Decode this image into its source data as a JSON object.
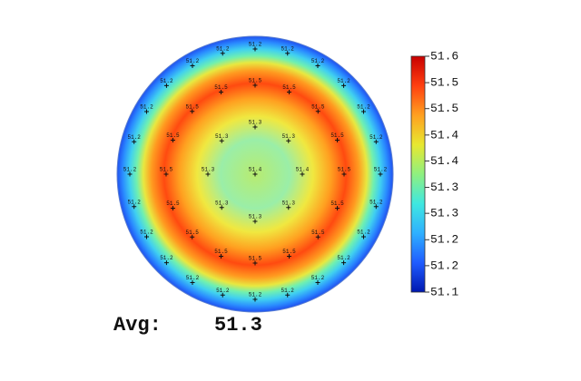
{
  "chart_data": {
    "type": "wafer-map",
    "rings": [
      [
        51.4
      ],
      [
        51.3,
        51.3,
        51.4,
        51.3,
        51.3,
        51.3,
        51.3,
        51.3
      ],
      [
        51.5,
        51.5,
        51.5,
        51.5,
        51.5,
        51.5,
        51.5,
        51.5,
        51.5,
        51.5,
        51.5,
        51.5,
        51.5,
        51.5,
        51.5,
        51.5
      ],
      [
        51.2,
        51.2,
        51.2,
        51.2,
        51.2,
        51.2,
        51.2,
        51.2,
        51.2,
        51.2,
        51.2,
        51.2,
        51.2,
        51.2,
        51.2,
        51.2,
        51.2,
        51.2,
        51.2,
        51.2,
        51.2,
        51.2,
        51.2,
        51.2
      ]
    ],
    "clim": [
      51.1,
      51.6
    ],
    "cticks": [
      51.6,
      {
        "value": 51.544,
        "label": "51.5"
      },
      {
        "value": 51.489,
        "label": "51.5"
      },
      {
        "value": 51.433,
        "label": "51.4"
      },
      {
        "value": 51.378,
        "label": "51.4"
      },
      {
        "value": 51.322,
        "label": "51.3"
      },
      {
        "value": 51.267,
        "label": "51.3"
      },
      {
        "value": 51.211,
        "label": "51.2"
      },
      {
        "value": 51.156,
        "label": "51.2"
      },
      51.1
    ],
    "colormap": [
      "#0018b0",
      "#1f5cff",
      "#2fb0ff",
      "#3fe8e0",
      "#8ff080",
      "#e8e830",
      "#ffa020",
      "#ff4010",
      "#c80000"
    ],
    "avg_label": "Avg:",
    "avg": 51.3
  }
}
